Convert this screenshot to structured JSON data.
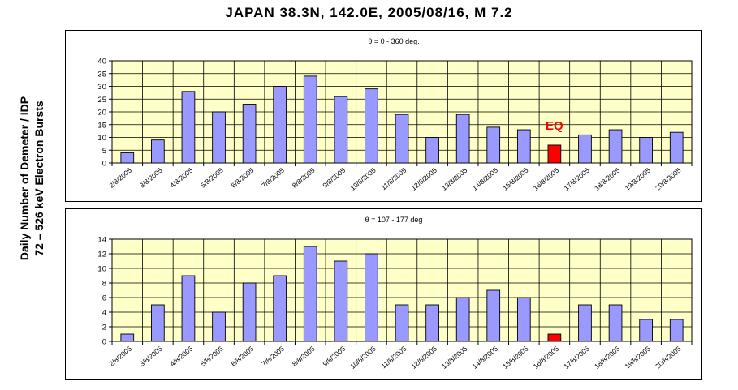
{
  "title": "JAPAN 38.3N, 142.0E, 2005/08/16, M 7.2",
  "ylabel_line1": "Daily Number of Demeter / IDP",
  "ylabel_line2": "72 – 526 keV Electron Bursts",
  "colors": {
    "plot_bg": "#ffffc8",
    "bar": "#9999ff",
    "bar_highlight": "#ff0000",
    "annotation": "#ff0000",
    "grid": "#000000"
  },
  "chart_data": [
    {
      "type": "bar",
      "title": "θ = 0 - 360 deg.",
      "categories": [
        "2/8/2005",
        "3/8/2005",
        "4/8/2005",
        "5/8/2005",
        "6/8/2005",
        "7/8/2005",
        "8/8/2005",
        "9/8/2005",
        "10/8/2005",
        "11/8/2005",
        "12/8/2005",
        "13/8/2005",
        "14/8/2005",
        "15/8/2005",
        "16/8/2005",
        "17/8/2005",
        "18/8/2005",
        "19/8/2005",
        "20/8/2005"
      ],
      "values": [
        4,
        9,
        28,
        20,
        23,
        30,
        34,
        26,
        29,
        19,
        10,
        19,
        14,
        13,
        7,
        11,
        13,
        10,
        12
      ],
      "highlight_index": 14,
      "annotation": "EQ",
      "ylim": [
        0,
        40
      ],
      "yticks": [
        0,
        5,
        10,
        15,
        20,
        25,
        30,
        35,
        40
      ],
      "grid": true,
      "xlabel": "",
      "ylabel": ""
    },
    {
      "type": "bar",
      "title": "θ = 107 - 177 deg",
      "categories": [
        "2/8/2005",
        "3/8/2005",
        "4/8/2005",
        "5/8/2005",
        "6/8/2005",
        "7/8/2005",
        "8/8/2005",
        "9/8/2005",
        "10/8/2005",
        "11/8/2005",
        "12/8/2005",
        "13/8/2005",
        "14/8/2005",
        "15/8/2005",
        "16/8/2005",
        "17/8/2005",
        "18/8/2005",
        "19/8/2005",
        "20/8/2005"
      ],
      "values": [
        1,
        5,
        9,
        4,
        8,
        9,
        13,
        11,
        12,
        5,
        5,
        6,
        7,
        6,
        1,
        5,
        5,
        3,
        3
      ],
      "highlight_index": 14,
      "annotation": "",
      "ylim": [
        0,
        14
      ],
      "yticks": [
        0,
        2,
        4,
        6,
        8,
        10,
        12,
        14
      ],
      "grid": true,
      "xlabel": "",
      "ylabel": ""
    }
  ]
}
